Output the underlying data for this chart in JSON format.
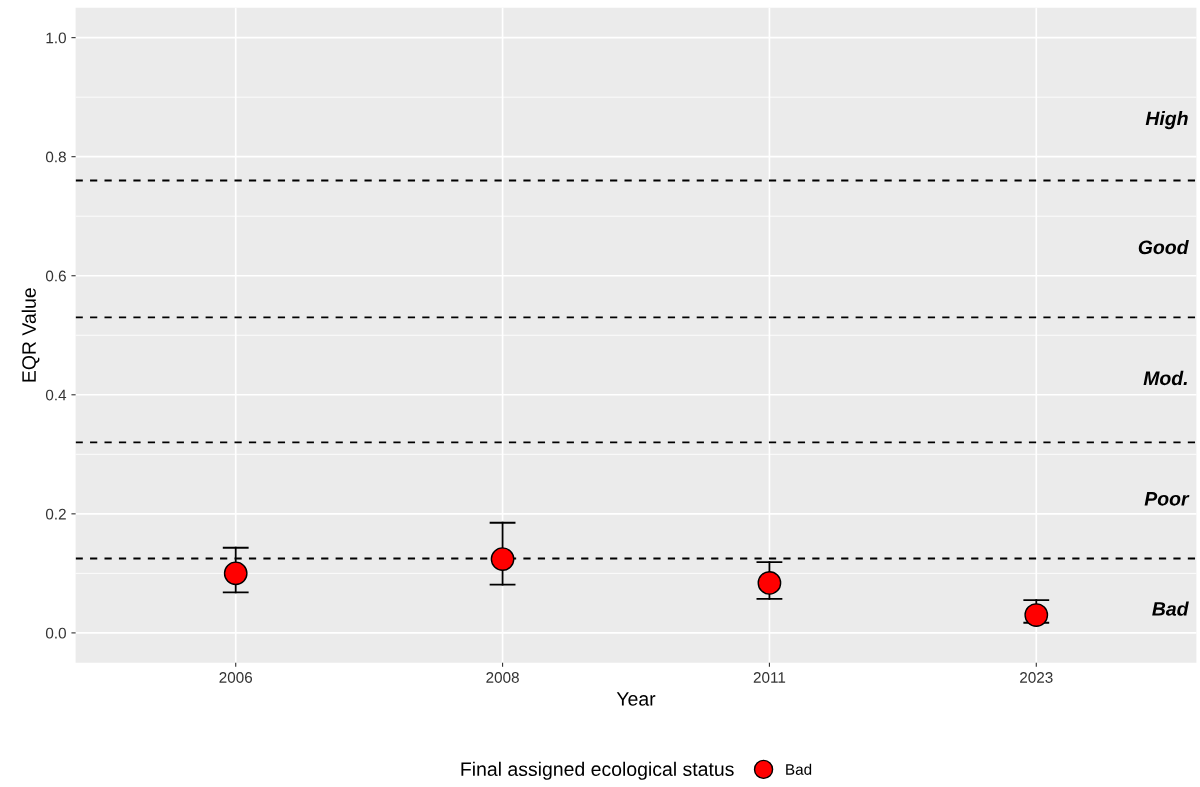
{
  "chart_data": {
    "type": "scatter",
    "xlabel": "Year",
    "ylabel": "EQR Value",
    "legend_title": "Final assigned ecological status",
    "categories": [
      "2006",
      "2008",
      "2011",
      "2023"
    ],
    "series": [
      {
        "name": "Bad",
        "color": "#ff0000",
        "values": [
          0.1,
          0.124,
          0.084,
          0.03
        ],
        "errors": [
          [
            0.068,
            0.143
          ],
          [
            0.081,
            0.185
          ],
          [
            0.057,
            0.119
          ],
          [
            0.017,
            0.055
          ]
        ]
      }
    ],
    "ylim": [
      -0.05,
      1.05
    ],
    "yticks": [
      {
        "value": 0,
        "label": "0.0"
      },
      0.2,
      0.4,
      0.6,
      0.8,
      {
        "value": 1,
        "label": "1.0"
      }
    ],
    "ref_lines": [
      {
        "axis": "y",
        "value": 0.76,
        "line_style": "dashed",
        "color": "#000000"
      },
      {
        "axis": "y",
        "value": 0.53,
        "line_style": "dashed",
        "color": "#000000"
      },
      {
        "axis": "y",
        "value": 0.32,
        "line_style": "dashed",
        "color": "#000000"
      },
      {
        "axis": "y",
        "value": 0.125,
        "line_style": "dashed",
        "color": "#000000"
      }
    ],
    "annotations": [
      "High",
      "Good",
      "Mod.",
      "Poor",
      "Bad"
    ],
    "grid": true,
    "legend": "bottom",
    "marker": "circle"
  }
}
